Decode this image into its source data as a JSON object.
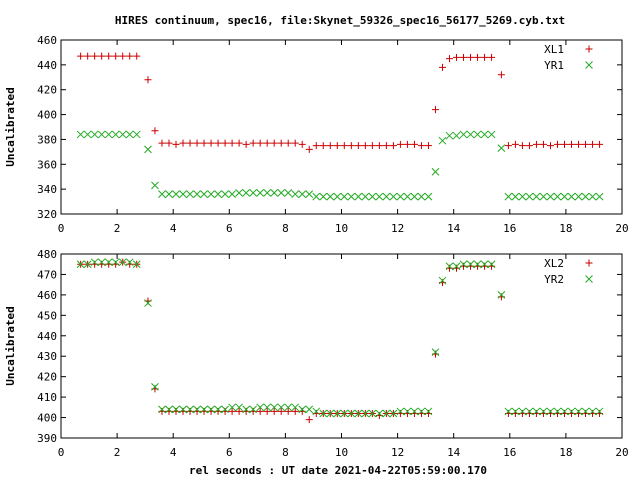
{
  "title": "HIRES continuum, spec16, file:Skynet_59326_spec16_56177_5269.cyb.txt",
  "xlabel": "rel seconds : UT date 2021-04-22T05:59:00.170",
  "colors": {
    "xl": "#cc0000",
    "yr": "#22aa22",
    "axis": "#000000"
  },
  "chart_data": [
    {
      "type": "scatter",
      "ylabel": "Uncalibrated",
      "xlim": [
        0,
        20
      ],
      "ylim": [
        320,
        460
      ],
      "xticks": [
        0,
        2,
        4,
        6,
        8,
        10,
        12,
        14,
        16,
        18,
        20
      ],
      "yticks": [
        320,
        340,
        360,
        380,
        400,
        420,
        440,
        460
      ],
      "legend_position": "top-right",
      "grid": false,
      "x": [
        0.7,
        0.95,
        1.2,
        1.45,
        1.7,
        1.95,
        2.2,
        2.45,
        2.7,
        3.1,
        3.35,
        3.6,
        3.85,
        4.1,
        4.35,
        4.6,
        4.85,
        5.1,
        5.35,
        5.6,
        5.85,
        6.1,
        6.35,
        6.6,
        6.85,
        7.1,
        7.35,
        7.6,
        7.85,
        8.1,
        8.35,
        8.6,
        8.85,
        9.1,
        9.35,
        9.6,
        9.85,
        10.1,
        10.35,
        10.6,
        10.85,
        11.1,
        11.35,
        11.6,
        11.85,
        12.1,
        12.35,
        12.6,
        12.85,
        13.1,
        13.35,
        13.6,
        13.85,
        14.1,
        14.35,
        14.6,
        14.85,
        15.1,
        15.35,
        15.7,
        15.95,
        16.2,
        16.45,
        16.7,
        16.95,
        17.2,
        17.45,
        17.7,
        17.95,
        18.2,
        18.45,
        18.7,
        18.95,
        19.2
      ],
      "series": [
        {
          "name": "XL1",
          "marker": "plus",
          "values": [
            447,
            447,
            447,
            447,
            447,
            447,
            447,
            447,
            447,
            428,
            387,
            377,
            377,
            376,
            377,
            377,
            377,
            377,
            377,
            377,
            377,
            377,
            377,
            376,
            377,
            377,
            377,
            377,
            377,
            377,
            377,
            376,
            372,
            375,
            375,
            375,
            375,
            375,
            375,
            375,
            375,
            375,
            375,
            375,
            375,
            376,
            376,
            376,
            375,
            375,
            404,
            438,
            445,
            446,
            446,
            446,
            446,
            446,
            446,
            432,
            375,
            376,
            375,
            375,
            376,
            376,
            375,
            376,
            376,
            376,
            376,
            376,
            376,
            376
          ]
        },
        {
          "name": "YR1",
          "marker": "cross",
          "values": [
            384,
            384,
            384,
            384,
            384,
            384,
            384,
            384,
            384,
            372,
            343,
            336,
            336,
            336,
            336,
            336,
            336,
            336,
            336,
            336,
            336,
            336,
            337,
            337,
            337,
            337,
            337,
            337,
            337,
            337,
            336,
            336,
            336,
            334,
            334,
            334,
            334,
            334,
            334,
            334,
            334,
            334,
            334,
            334,
            334,
            334,
            334,
            334,
            334,
            334,
            354,
            379,
            383,
            383,
            384,
            384,
            384,
            384,
            384,
            373,
            334,
            334,
            334,
            334,
            334,
            334,
            334,
            334,
            334,
            334,
            334,
            334,
            334,
            334
          ]
        }
      ]
    },
    {
      "type": "scatter",
      "ylabel": "Uncalibrated",
      "xlim": [
        0,
        20
      ],
      "ylim": [
        390,
        480
      ],
      "xticks": [
        0,
        2,
        4,
        6,
        8,
        10,
        12,
        14,
        16,
        18,
        20
      ],
      "yticks": [
        390,
        400,
        410,
        420,
        430,
        440,
        450,
        460,
        470,
        480
      ],
      "legend_position": "top-right",
      "grid": false,
      "x": [
        0.7,
        0.95,
        1.2,
        1.45,
        1.7,
        1.95,
        2.2,
        2.45,
        2.7,
        3.1,
        3.35,
        3.6,
        3.85,
        4.1,
        4.35,
        4.6,
        4.85,
        5.1,
        5.35,
        5.6,
        5.85,
        6.1,
        6.35,
        6.6,
        6.85,
        7.1,
        7.35,
        7.6,
        7.85,
        8.1,
        8.35,
        8.6,
        8.85,
        9.1,
        9.35,
        9.6,
        9.85,
        10.1,
        10.35,
        10.6,
        10.85,
        11.1,
        11.35,
        11.6,
        11.85,
        12.1,
        12.35,
        12.6,
        12.85,
        13.1,
        13.35,
        13.6,
        13.85,
        14.1,
        14.35,
        14.6,
        14.85,
        15.1,
        15.35,
        15.7,
        15.95,
        16.2,
        16.45,
        16.7,
        16.95,
        17.2,
        17.45,
        17.7,
        17.95,
        18.2,
        18.45,
        18.7,
        18.95,
        19.2
      ],
      "series": [
        {
          "name": "XL2",
          "marker": "plus",
          "values": [
            475,
            475,
            475,
            475,
            475,
            475,
            476,
            475,
            475,
            457,
            414,
            403,
            403,
            403,
            403,
            403,
            403,
            403,
            403,
            403,
            403,
            403,
            403,
            403,
            403,
            403,
            403,
            403,
            403,
            403,
            403,
            403,
            399,
            402,
            402,
            402,
            402,
            402,
            402,
            402,
            402,
            402,
            401,
            402,
            402,
            402,
            402,
            402,
            402,
            402,
            431,
            466,
            473,
            473,
            474,
            474,
            474,
            474,
            474,
            459,
            402,
            402,
            402,
            402,
            402,
            402,
            402,
            402,
            402,
            402,
            402,
            402,
            402,
            402
          ]
        },
        {
          "name": "YR2",
          "marker": "cross",
          "values": [
            475,
            475,
            476,
            476,
            476,
            476,
            476,
            476,
            475,
            456,
            415,
            404,
            404,
            404,
            404,
            404,
            404,
            404,
            404,
            404,
            404,
            405,
            405,
            404,
            404,
            405,
            405,
            405,
            405,
            405,
            405,
            404,
            404,
            403,
            402,
            402,
            402,
            402,
            402,
            402,
            402,
            402,
            402,
            402,
            402,
            403,
            403,
            403,
            403,
            403,
            432,
            467,
            474,
            474,
            475,
            475,
            475,
            475,
            475,
            460,
            403,
            403,
            403,
            403,
            403,
            403,
            403,
            403,
            403,
            403,
            403,
            403,
            403,
            403
          ]
        }
      ]
    }
  ]
}
